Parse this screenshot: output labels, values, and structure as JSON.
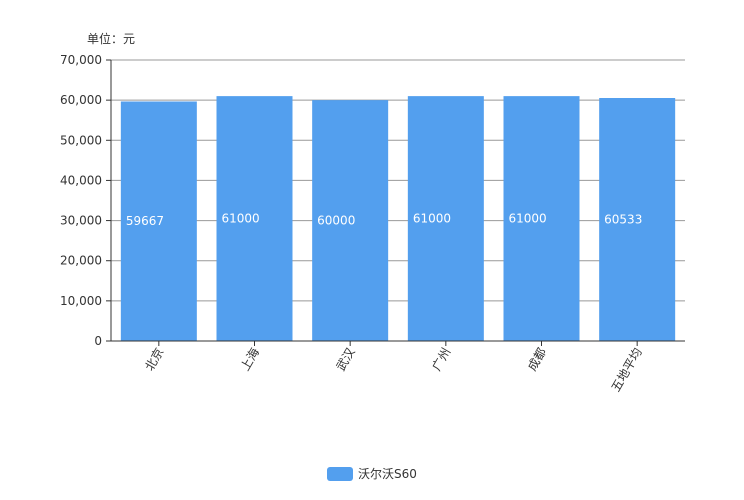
{
  "chart_data": {
    "type": "bar",
    "unit_label": "单位：元",
    "categories": [
      "北京",
      "上海",
      "武汉",
      "广州",
      "成都",
      "五地平均"
    ],
    "series": [
      {
        "name": "沃尔沃S60",
        "values": [
          59667,
          61000,
          60000,
          61000,
          61000,
          60533
        ],
        "color": "#539fee"
      }
    ],
    "ylim": [
      0,
      70000
    ],
    "yticks": [
      0,
      10000,
      20000,
      30000,
      40000,
      50000,
      60000,
      70000
    ],
    "ytick_labels": [
      "0",
      "10,000",
      "20,000",
      "30,000",
      "40,000",
      "50,000",
      "60,000",
      "70,000"
    ],
    "grid": true,
    "legend_position": "bottom-center"
  }
}
